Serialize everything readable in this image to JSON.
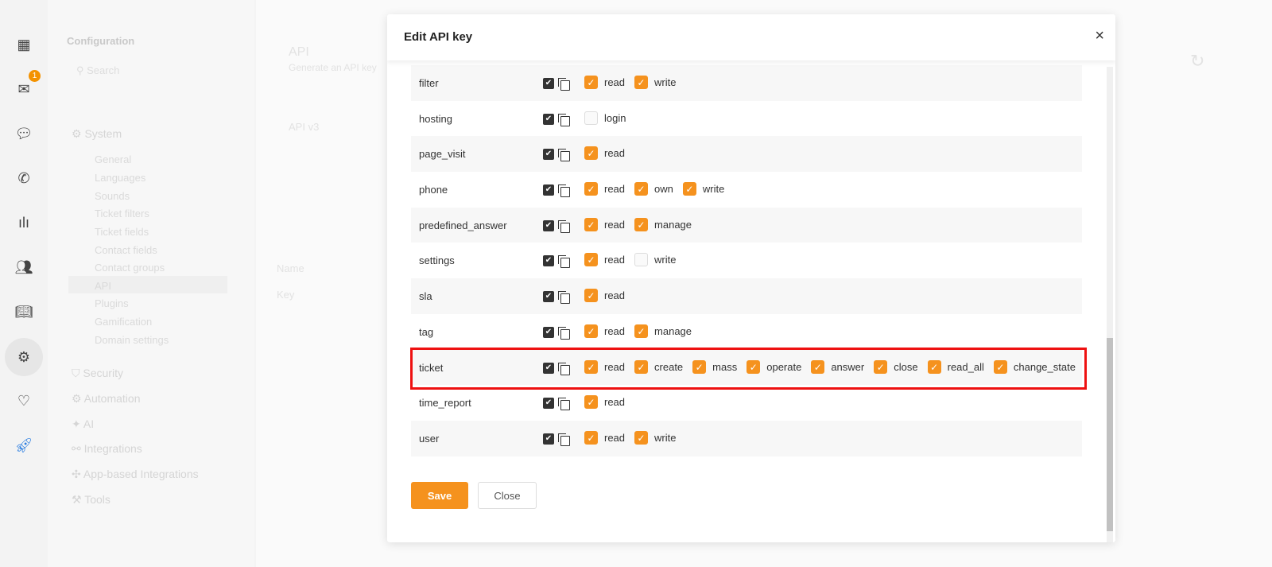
{
  "rail": {
    "icons": [
      "dashboard-icon",
      "mail-icon",
      "chat-icon",
      "phone-icon",
      "reports-icon",
      "contacts-icon",
      "knowledge-base-icon",
      "settings-icon",
      "heart-icon",
      "rocket-icon"
    ],
    "badge": "1"
  },
  "config": {
    "title": "Configuration",
    "search_placeholder": "Search",
    "system": "System",
    "items": [
      "General",
      "Languages",
      "Sounds",
      "Ticket filters",
      "Ticket fields",
      "Contact fields",
      "Contact groups",
      "API",
      "Plugins",
      "Gamification",
      "Domain settings"
    ],
    "sections": [
      "Security",
      "Automation",
      "AI",
      "Integrations",
      "App-based Integrations",
      "Tools"
    ]
  },
  "main": {
    "title": "API",
    "subtitle": "Generate an API key",
    "keys_label": "API v3",
    "name_header": "Name",
    "key_header": "Key"
  },
  "modal": {
    "title": "Edit API key",
    "close_icon": "×",
    "save": "Save",
    "close": "Close",
    "rows": [
      {
        "name": "filter",
        "perms": [
          {
            "label": "read",
            "checked": true
          },
          {
            "label": "write",
            "checked": true
          }
        ]
      },
      {
        "name": "hosting",
        "perms": [
          {
            "label": "login",
            "checked": false
          }
        ]
      },
      {
        "name": "page_visit",
        "perms": [
          {
            "label": "read",
            "checked": true
          }
        ]
      },
      {
        "name": "phone",
        "perms": [
          {
            "label": "read",
            "checked": true
          },
          {
            "label": "own",
            "checked": true
          },
          {
            "label": "write",
            "checked": true
          }
        ]
      },
      {
        "name": "predefined_answer",
        "perms": [
          {
            "label": "read",
            "checked": true
          },
          {
            "label": "manage",
            "checked": true
          }
        ]
      },
      {
        "name": "settings",
        "perms": [
          {
            "label": "read",
            "checked": true
          },
          {
            "label": "write",
            "checked": false
          }
        ]
      },
      {
        "name": "sla",
        "perms": [
          {
            "label": "read",
            "checked": true
          }
        ]
      },
      {
        "name": "tag",
        "perms": [
          {
            "label": "read",
            "checked": true
          },
          {
            "label": "manage",
            "checked": true
          }
        ]
      },
      {
        "name": "ticket",
        "highlighted": true,
        "perms": [
          {
            "label": "read",
            "checked": true
          },
          {
            "label": "create",
            "checked": true
          },
          {
            "label": "mass",
            "checked": true
          },
          {
            "label": "operate",
            "checked": true
          },
          {
            "label": "answer",
            "checked": true
          },
          {
            "label": "close",
            "checked": true
          },
          {
            "label": "read_all",
            "checked": true
          },
          {
            "label": "change_state",
            "checked": true
          }
        ]
      },
      {
        "name": "time_report",
        "perms": [
          {
            "label": "read",
            "checked": true
          }
        ]
      },
      {
        "name": "user",
        "perms": [
          {
            "label": "read",
            "checked": true
          },
          {
            "label": "write",
            "checked": true
          }
        ]
      }
    ]
  },
  "colors": {
    "accent": "#f5921e",
    "highlight": "#ee1111"
  }
}
